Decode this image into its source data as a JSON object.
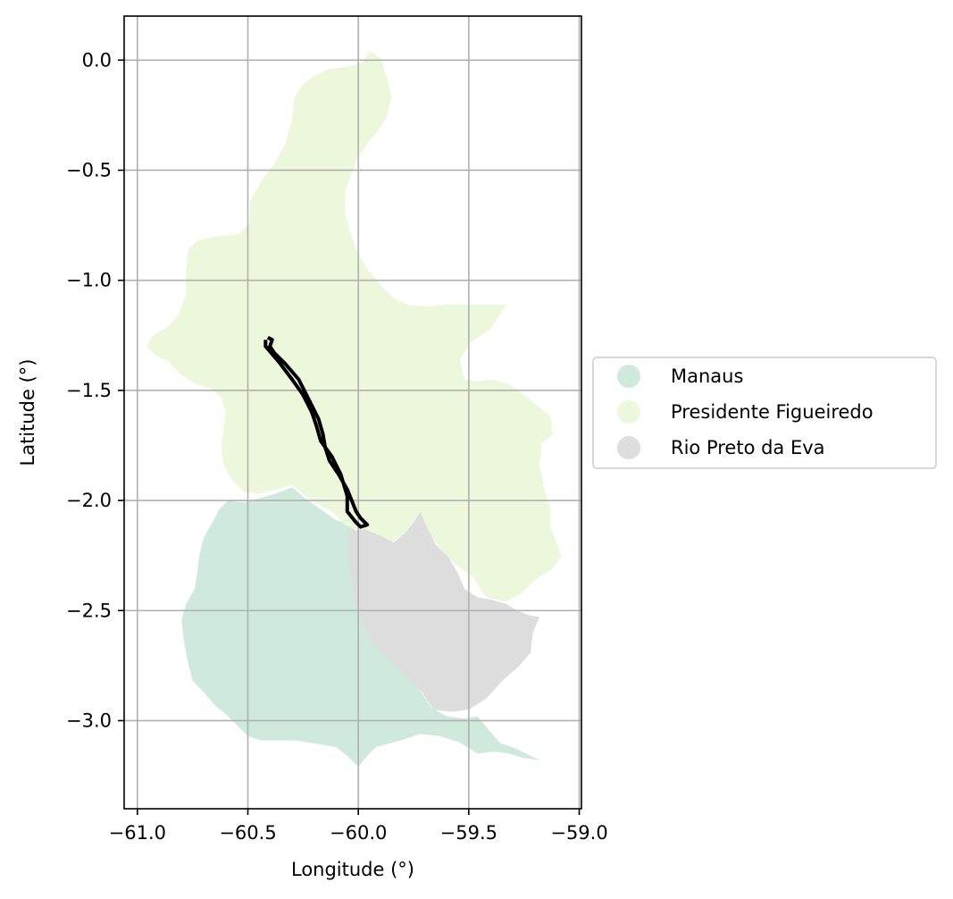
{
  "chart_data": {
    "type": "map",
    "xlabel": "Longitude (°)",
    "ylabel": "Latitude (°)",
    "xlim": [
      -61.06,
      -58.99
    ],
    "ylim": [
      -3.4,
      0.2
    ],
    "xticks": [
      -61.0,
      -60.5,
      -60.0,
      -59.5,
      -59.0
    ],
    "xtick_labels": [
      "−61.0",
      "−60.5",
      "−60.0",
      "−59.5",
      "−59.0"
    ],
    "yticks": [
      0.0,
      -0.5,
      -1.0,
      -1.5,
      -2.0,
      -2.5,
      -3.0
    ],
    "ytick_labels": [
      "0.0",
      "−0.5",
      "−1.0",
      "−1.5",
      "−2.0",
      "−2.5",
      "−3.0"
    ],
    "grid": true,
    "legend_placement": "right, outside axes",
    "regions": [
      {
        "name": "Manaus",
        "color": "#cfeadd",
        "polygon": [
          [
            -60.1,
            -2.09
          ],
          [
            -60.02,
            -2.11
          ],
          [
            -60.01,
            -2.18
          ],
          [
            -60.02,
            -2.27
          ],
          [
            -60.02,
            -2.4
          ],
          [
            -59.99,
            -2.48
          ],
          [
            -59.98,
            -2.56
          ],
          [
            -59.92,
            -2.63
          ],
          [
            -59.86,
            -2.67
          ],
          [
            -59.82,
            -2.74
          ],
          [
            -59.76,
            -2.79
          ],
          [
            -59.71,
            -2.88
          ],
          [
            -59.67,
            -2.94
          ],
          [
            -59.6,
            -2.98
          ],
          [
            -59.52,
            -2.99
          ],
          [
            -59.46,
            -2.98
          ],
          [
            -59.42,
            -3.03
          ],
          [
            -59.36,
            -3.1
          ],
          [
            -59.28,
            -3.13
          ],
          [
            -59.2,
            -3.17
          ],
          [
            -59.17,
            -3.18
          ],
          [
            -59.25,
            -3.17
          ],
          [
            -59.32,
            -3.15
          ],
          [
            -59.38,
            -3.14
          ],
          [
            -59.46,
            -3.15
          ],
          [
            -59.54,
            -3.1
          ],
          [
            -59.63,
            -3.07
          ],
          [
            -59.72,
            -3.06
          ],
          [
            -59.81,
            -3.09
          ],
          [
            -59.92,
            -3.12
          ],
          [
            -59.96,
            -3.16
          ],
          [
            -60.0,
            -3.21
          ],
          [
            -60.05,
            -3.16
          ],
          [
            -60.1,
            -3.12
          ],
          [
            -60.16,
            -3.11
          ],
          [
            -60.22,
            -3.1
          ],
          [
            -60.28,
            -3.09
          ],
          [
            -60.36,
            -3.09
          ],
          [
            -60.44,
            -3.09
          ],
          [
            -60.5,
            -3.07
          ],
          [
            -60.55,
            -3.02
          ],
          [
            -60.6,
            -2.97
          ],
          [
            -60.65,
            -2.93
          ],
          [
            -60.7,
            -2.87
          ],
          [
            -60.75,
            -2.82
          ],
          [
            -60.77,
            -2.74
          ],
          [
            -60.79,
            -2.64
          ],
          [
            -60.8,
            -2.54
          ],
          [
            -60.78,
            -2.47
          ],
          [
            -60.74,
            -2.4
          ],
          [
            -60.73,
            -2.33
          ],
          [
            -60.72,
            -2.25
          ],
          [
            -60.7,
            -2.17
          ],
          [
            -60.66,
            -2.1
          ],
          [
            -60.63,
            -2.04
          ],
          [
            -60.59,
            -2.0
          ],
          [
            -60.52,
            -2.01
          ],
          [
            -60.45,
            -1.99
          ],
          [
            -60.38,
            -1.97
          ],
          [
            -60.3,
            -1.94
          ],
          [
            -60.24,
            -1.99
          ],
          [
            -60.17,
            -2.04
          ]
        ]
      },
      {
        "name": "Presidente Figueiredo",
        "color": "#edf7dc",
        "polygon": [
          [
            -59.95,
            0.04
          ],
          [
            -59.9,
            0.01
          ],
          [
            -59.87,
            -0.08
          ],
          [
            -59.85,
            -0.17
          ],
          [
            -59.87,
            -0.26
          ],
          [
            -59.91,
            -0.32
          ],
          [
            -59.96,
            -0.38
          ],
          [
            -60.0,
            -0.44
          ],
          [
            -60.03,
            -0.51
          ],
          [
            -60.06,
            -0.6
          ],
          [
            -60.06,
            -0.7
          ],
          [
            -60.03,
            -0.8
          ],
          [
            -60.0,
            -0.88
          ],
          [
            -59.96,
            -0.95
          ],
          [
            -59.9,
            -1.02
          ],
          [
            -59.84,
            -1.08
          ],
          [
            -59.78,
            -1.11
          ],
          [
            -59.7,
            -1.12
          ],
          [
            -59.6,
            -1.11
          ],
          [
            -59.5,
            -1.11
          ],
          [
            -59.4,
            -1.11
          ],
          [
            -59.33,
            -1.11
          ],
          [
            -59.4,
            -1.22
          ],
          [
            -59.49,
            -1.28
          ],
          [
            -59.54,
            -1.36
          ],
          [
            -59.52,
            -1.45
          ],
          [
            -59.46,
            -1.46
          ],
          [
            -59.4,
            -1.45
          ],
          [
            -59.32,
            -1.47
          ],
          [
            -59.25,
            -1.52
          ],
          [
            -59.2,
            -1.56
          ],
          [
            -59.13,
            -1.62
          ],
          [
            -59.12,
            -1.7
          ],
          [
            -59.17,
            -1.74
          ],
          [
            -59.18,
            -1.84
          ],
          [
            -59.16,
            -1.94
          ],
          [
            -59.13,
            -2.03
          ],
          [
            -59.13,
            -2.12
          ],
          [
            -59.1,
            -2.2
          ],
          [
            -59.08,
            -2.25
          ],
          [
            -59.12,
            -2.31
          ],
          [
            -59.2,
            -2.36
          ],
          [
            -59.26,
            -2.42
          ],
          [
            -59.33,
            -2.46
          ],
          [
            -59.42,
            -2.44
          ],
          [
            -59.48,
            -2.35
          ],
          [
            -59.56,
            -2.29
          ],
          [
            -59.62,
            -2.23
          ],
          [
            -59.68,
            -2.15
          ],
          [
            -59.72,
            -2.05
          ],
          [
            -59.76,
            -2.11
          ],
          [
            -59.8,
            -2.16
          ],
          [
            -59.87,
            -2.2
          ],
          [
            -59.94,
            -2.18
          ],
          [
            -60.0,
            -2.14
          ],
          [
            -60.06,
            -2.11
          ],
          [
            -60.12,
            -2.05
          ],
          [
            -60.18,
            -2.02
          ],
          [
            -60.24,
            -1.98
          ],
          [
            -60.3,
            -1.93
          ],
          [
            -60.37,
            -1.95
          ],
          [
            -60.45,
            -1.97
          ],
          [
            -60.52,
            -1.96
          ],
          [
            -60.57,
            -1.91
          ],
          [
            -60.61,
            -1.84
          ],
          [
            -60.62,
            -1.76
          ],
          [
            -60.61,
            -1.68
          ],
          [
            -60.6,
            -1.6
          ],
          [
            -60.62,
            -1.53
          ],
          [
            -60.67,
            -1.49
          ],
          [
            -60.74,
            -1.47
          ],
          [
            -60.8,
            -1.43
          ],
          [
            -60.86,
            -1.37
          ],
          [
            -60.92,
            -1.34
          ],
          [
            -60.96,
            -1.3
          ],
          [
            -60.93,
            -1.25
          ],
          [
            -60.86,
            -1.21
          ],
          [
            -60.81,
            -1.15
          ],
          [
            -60.78,
            -1.06
          ],
          [
            -60.78,
            -0.95
          ],
          [
            -60.77,
            -0.86
          ],
          [
            -60.73,
            -0.82
          ],
          [
            -60.64,
            -0.8
          ],
          [
            -60.54,
            -0.79
          ],
          [
            -60.49,
            -0.74
          ],
          [
            -60.49,
            -0.64
          ],
          [
            -60.44,
            -0.55
          ],
          [
            -60.38,
            -0.47
          ],
          [
            -60.33,
            -0.38
          ],
          [
            -60.3,
            -0.27
          ],
          [
            -60.29,
            -0.17
          ],
          [
            -60.25,
            -0.11
          ],
          [
            -60.2,
            -0.07
          ],
          [
            -60.13,
            -0.04
          ],
          [
            -60.05,
            -0.03
          ],
          [
            -59.98,
            -0.01
          ]
        ]
      },
      {
        "name": "Rio Preto da Eva",
        "color": "#dddddd",
        "polygon": [
          [
            -60.04,
            -2.14
          ],
          [
            -59.97,
            -2.13
          ],
          [
            -59.9,
            -2.16
          ],
          [
            -59.84,
            -2.19
          ],
          [
            -59.79,
            -2.15
          ],
          [
            -59.75,
            -2.1
          ],
          [
            -59.72,
            -2.05
          ],
          [
            -59.69,
            -2.12
          ],
          [
            -59.65,
            -2.2
          ],
          [
            -59.59,
            -2.26
          ],
          [
            -59.55,
            -2.33
          ],
          [
            -59.52,
            -2.4
          ],
          [
            -59.46,
            -2.44
          ],
          [
            -59.4,
            -2.45
          ],
          [
            -59.33,
            -2.47
          ],
          [
            -59.28,
            -2.5
          ],
          [
            -59.23,
            -2.52
          ],
          [
            -59.18,
            -2.53
          ],
          [
            -59.21,
            -2.6
          ],
          [
            -59.22,
            -2.69
          ],
          [
            -59.27,
            -2.75
          ],
          [
            -59.35,
            -2.82
          ],
          [
            -59.42,
            -2.9
          ],
          [
            -59.5,
            -2.95
          ],
          [
            -59.58,
            -2.96
          ],
          [
            -59.66,
            -2.95
          ],
          [
            -59.72,
            -2.86
          ],
          [
            -59.8,
            -2.78
          ],
          [
            -59.87,
            -2.71
          ],
          [
            -59.94,
            -2.64
          ],
          [
            -59.98,
            -2.56
          ],
          [
            -60.01,
            -2.47
          ],
          [
            -60.03,
            -2.38
          ],
          [
            -60.04,
            -2.28
          ],
          [
            -60.04,
            -2.2
          ]
        ]
      }
    ],
    "route": [
      [
        -60.41,
        -1.26
      ],
      [
        -60.39,
        -1.27
      ],
      [
        -60.4,
        -1.3
      ],
      [
        -60.38,
        -1.33
      ],
      [
        -60.33,
        -1.38
      ],
      [
        -60.27,
        -1.45
      ],
      [
        -60.22,
        -1.55
      ],
      [
        -60.18,
        -1.63
      ],
      [
        -60.16,
        -1.7
      ],
      [
        -60.15,
        -1.76
      ],
      [
        -60.13,
        -1.82
      ],
      [
        -60.09,
        -1.88
      ],
      [
        -60.05,
        -1.95
      ],
      [
        -60.03,
        -2.0
      ],
      [
        -60.01,
        -2.05
      ],
      [
        -59.99,
        -2.08
      ],
      [
        -59.96,
        -2.11
      ],
      [
        -59.99,
        -2.12
      ],
      [
        -60.01,
        -2.1
      ],
      [
        -60.05,
        -2.05
      ],
      [
        -60.05,
        -1.98
      ],
      [
        -60.08,
        -1.88
      ],
      [
        -60.12,
        -1.8
      ],
      [
        -60.17,
        -1.73
      ],
      [
        -60.19,
        -1.66
      ],
      [
        -60.21,
        -1.6
      ],
      [
        -60.25,
        -1.52
      ],
      [
        -60.3,
        -1.45
      ],
      [
        -60.36,
        -1.37
      ],
      [
        -60.42,
        -1.3
      ],
      [
        -60.42,
        -1.27
      ]
    ]
  },
  "legend": {
    "items": [
      {
        "label": "Manaus",
        "color": "#cfeadd"
      },
      {
        "label": "Presidente Figueiredo",
        "color": "#edf7dc"
      },
      {
        "label": "Rio Preto da Eva",
        "color": "#dddddd"
      }
    ]
  }
}
